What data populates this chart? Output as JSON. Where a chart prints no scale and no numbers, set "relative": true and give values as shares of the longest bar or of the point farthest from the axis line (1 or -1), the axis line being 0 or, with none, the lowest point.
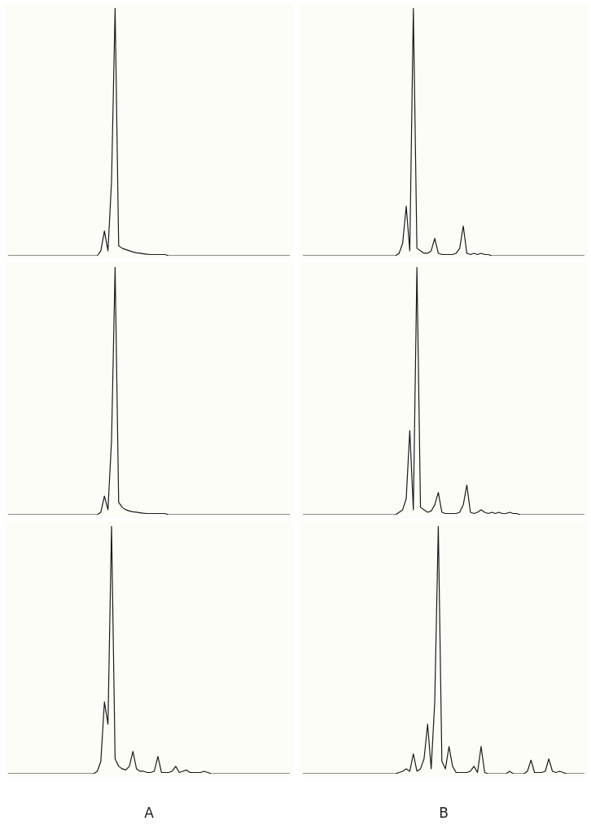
{
  "chart_data": [
    {
      "type": "line",
      "relative": true,
      "tick_labels": false,
      "categories": [
        null,
        null,
        null,
        null,
        null,
        null,
        null,
        null,
        null,
        null,
        null,
        null,
        null,
        null,
        null,
        null,
        null,
        null,
        null,
        null,
        null,
        null,
        null,
        null,
        null,
        null,
        null,
        null,
        null,
        null,
        null,
        null,
        null,
        null,
        null,
        null,
        null,
        null,
        null,
        null,
        null,
        null,
        null,
        null,
        null,
        null,
        null,
        null,
        null,
        null,
        null,
        null,
        null,
        null,
        null,
        null,
        null,
        null,
        null,
        null,
        null,
        null,
        null,
        null,
        null,
        null,
        null,
        null,
        null,
        null,
        null,
        null,
        null,
        null,
        null,
        null,
        null,
        null,
        null,
        null
      ],
      "series": [
        {
          "color": "#1a1a1a",
          "values": [
            0,
            0,
            0,
            0,
            0,
            0,
            0,
            0,
            0,
            0,
            0,
            0,
            0,
            0,
            0,
            0,
            0,
            0,
            0,
            0,
            0,
            0,
            0,
            0,
            0,
            0,
            0.02,
            0.1,
            0.02,
            0.3,
            1,
            0.04,
            0.03,
            0.025,
            0.02,
            0.015,
            0.012,
            0.01,
            0.008,
            0.006,
            0.005,
            0.005,
            0.005,
            0.005,
            0.005,
            0,
            0,
            0,
            0,
            0,
            0,
            0,
            0,
            0,
            0,
            0,
            0,
            0,
            0,
            0,
            0,
            0,
            0,
            0,
            0,
            0,
            0,
            0,
            0,
            0,
            0,
            0,
            0,
            0,
            0,
            0,
            0,
            0,
            0,
            0
          ]
        }
      ]
    },
    {
      "type": "line",
      "relative": true,
      "tick_labels": false,
      "categories": [
        null,
        null,
        null,
        null,
        null,
        null,
        null,
        null,
        null,
        null,
        null,
        null,
        null,
        null,
        null,
        null,
        null,
        null,
        null,
        null,
        null,
        null,
        null,
        null,
        null,
        null,
        null,
        null,
        null,
        null,
        null,
        null,
        null,
        null,
        null,
        null,
        null,
        null,
        null,
        null,
        null,
        null,
        null,
        null,
        null,
        null,
        null,
        null,
        null,
        null,
        null,
        null,
        null,
        null,
        null,
        null,
        null,
        null,
        null,
        null,
        null,
        null,
        null,
        null,
        null,
        null,
        null,
        null,
        null,
        null,
        null,
        null,
        null,
        null,
        null,
        null,
        null,
        null,
        null,
        null
      ],
      "series": [
        {
          "color": "#1a1a1a",
          "values": [
            0,
            0,
            0,
            0,
            0,
            0,
            0,
            0,
            0,
            0,
            0,
            0,
            0,
            0,
            0,
            0,
            0,
            0,
            0,
            0,
            0,
            0,
            0,
            0,
            0,
            0,
            0,
            0.01,
            0.05,
            0.2,
            0.02,
            1,
            0.03,
            0.02,
            0.01,
            0.01,
            0.02,
            0.07,
            0.01,
            0.005,
            0.005,
            0.005,
            0.005,
            0.01,
            0.03,
            0.12,
            0.01,
            0.005,
            0.01,
            0.005,
            0.01,
            0.005,
            0.005,
            0,
            0,
            0,
            0,
            0,
            0,
            0,
            0,
            0,
            0,
            0,
            0,
            0,
            0,
            0,
            0,
            0,
            0,
            0,
            0,
            0,
            0,
            0,
            0,
            0,
            0,
            0
          ]
        }
      ]
    },
    {
      "type": "line",
      "relative": true,
      "tick_labels": false,
      "categories": [
        null,
        null,
        null,
        null,
        null,
        null,
        null,
        null,
        null,
        null,
        null,
        null,
        null,
        null,
        null,
        null,
        null,
        null,
        null,
        null,
        null,
        null,
        null,
        null,
        null,
        null,
        null,
        null,
        null,
        null,
        null,
        null,
        null,
        null,
        null,
        null,
        null,
        null,
        null,
        null,
        null,
        null,
        null,
        null,
        null,
        null,
        null,
        null,
        null,
        null,
        null,
        null,
        null,
        null,
        null,
        null,
        null,
        null,
        null,
        null,
        null,
        null,
        null,
        null,
        null,
        null,
        null,
        null,
        null,
        null,
        null,
        null,
        null,
        null,
        null,
        null,
        null,
        null,
        null,
        null
      ],
      "series": [
        {
          "color": "#1a1a1a",
          "values": [
            0,
            0,
            0,
            0,
            0,
            0,
            0,
            0,
            0,
            0,
            0,
            0,
            0,
            0,
            0,
            0,
            0,
            0,
            0,
            0,
            0,
            0,
            0,
            0,
            0,
            0,
            0.01,
            0.075,
            0.02,
            0.3,
            1,
            0.05,
            0.03,
            0.02,
            0.015,
            0.012,
            0.01,
            0.008,
            0.006,
            0.005,
            0.005,
            0.005,
            0.005,
            0.005,
            0.005,
            0,
            0,
            0,
            0,
            0,
            0,
            0,
            0,
            0,
            0,
            0,
            0,
            0,
            0,
            0,
            0,
            0,
            0,
            0,
            0,
            0,
            0,
            0,
            0,
            0,
            0,
            0,
            0,
            0,
            0,
            0,
            0,
            0,
            0,
            0
          ]
        }
      ]
    },
    {
      "type": "line",
      "relative": true,
      "tick_labels": false,
      "categories": [
        null,
        null,
        null,
        null,
        null,
        null,
        null,
        null,
        null,
        null,
        null,
        null,
        null,
        null,
        null,
        null,
        null,
        null,
        null,
        null,
        null,
        null,
        null,
        null,
        null,
        null,
        null,
        null,
        null,
        null,
        null,
        null,
        null,
        null,
        null,
        null,
        null,
        null,
        null,
        null,
        null,
        null,
        null,
        null,
        null,
        null,
        null,
        null,
        null,
        null,
        null,
        null,
        null,
        null,
        null,
        null,
        null,
        null,
        null,
        null,
        null,
        null,
        null,
        null,
        null,
        null,
        null,
        null,
        null,
        null,
        null,
        null,
        null,
        null,
        null,
        null,
        null,
        null,
        null,
        null
      ],
      "series": [
        {
          "color": "#1a1a1a",
          "values": [
            0,
            0,
            0,
            0,
            0,
            0,
            0,
            0,
            0,
            0,
            0,
            0,
            0,
            0,
            0,
            0,
            0,
            0,
            0,
            0,
            0,
            0,
            0,
            0,
            0,
            0,
            0,
            0.01,
            0.02,
            0.065,
            0.34,
            0.02,
            1,
            0.03,
            0.02,
            0.01,
            0.015,
            0.04,
            0.09,
            0.01,
            0.005,
            0.005,
            0.005,
            0.005,
            0.01,
            0.04,
            0.12,
            0.01,
            0.005,
            0.01,
            0.02,
            0.01,
            0.005,
            0.01,
            0.005,
            0.01,
            0.005,
            0.005,
            0.01,
            0.005,
            0.005,
            0,
            0,
            0,
            0,
            0,
            0,
            0,
            0,
            0,
            0,
            0,
            0,
            0,
            0,
            0,
            0,
            0,
            0,
            0
          ]
        }
      ]
    },
    {
      "type": "line",
      "relative": true,
      "tick_labels": false,
      "xlabel": "A",
      "categories": [
        null,
        null,
        null,
        null,
        null,
        null,
        null,
        null,
        null,
        null,
        null,
        null,
        null,
        null,
        null,
        null,
        null,
        null,
        null,
        null,
        null,
        null,
        null,
        null,
        null,
        null,
        null,
        null,
        null,
        null,
        null,
        null,
        null,
        null,
        null,
        null,
        null,
        null,
        null,
        null,
        null,
        null,
        null,
        null,
        null,
        null,
        null,
        null,
        null,
        null,
        null,
        null,
        null,
        null,
        null,
        null,
        null,
        null,
        null,
        null,
        null,
        null,
        null,
        null,
        null,
        null,
        null,
        null,
        null,
        null,
        null,
        null,
        null,
        null,
        null,
        null,
        null,
        null,
        null,
        null
      ],
      "series": [
        {
          "color": "#1a1a1a",
          "values": [
            0,
            0,
            0,
            0,
            0,
            0,
            0,
            0,
            0,
            0,
            0,
            0,
            0,
            0,
            0,
            0,
            0,
            0,
            0,
            0,
            0,
            0,
            0,
            0,
            0,
            0.01,
            0.05,
            0.29,
            0.2,
            1,
            0.06,
            0.03,
            0.02,
            0.015,
            0.03,
            0.09,
            0.02,
            0.01,
            0.01,
            0.005,
            0.005,
            0.01,
            0.07,
            0.005,
            0.005,
            0.005,
            0.01,
            0.03,
            0.005,
            0.01,
            0.015,
            0.005,
            0.005,
            0.005,
            0.005,
            0.01,
            0.005,
            0,
            0,
            0,
            0,
            0,
            0,
            0,
            0,
            0,
            0,
            0,
            0,
            0,
            0,
            0,
            0,
            0,
            0,
            0,
            0,
            0,
            0,
            0
          ]
        }
      ]
    },
    {
      "type": "line",
      "relative": true,
      "tick_labels": false,
      "xlabel": "B",
      "categories": [
        null,
        null,
        null,
        null,
        null,
        null,
        null,
        null,
        null,
        null,
        null,
        null,
        null,
        null,
        null,
        null,
        null,
        null,
        null,
        null,
        null,
        null,
        null,
        null,
        null,
        null,
        null,
        null,
        null,
        null,
        null,
        null,
        null,
        null,
        null,
        null,
        null,
        null,
        null,
        null,
        null,
        null,
        null,
        null,
        null,
        null,
        null,
        null,
        null,
        null,
        null,
        null,
        null,
        null,
        null,
        null,
        null,
        null,
        null,
        null,
        null,
        null,
        null,
        null,
        null,
        null,
        null,
        null,
        null,
        null,
        null,
        null,
        null,
        null,
        null,
        null,
        null,
        null,
        null,
        null
      ],
      "series": [
        {
          "color": "#1a1a1a",
          "values": [
            0,
            0,
            0,
            0,
            0,
            0,
            0,
            0,
            0,
            0,
            0,
            0,
            0,
            0,
            0,
            0,
            0,
            0,
            0,
            0,
            0,
            0,
            0,
            0,
            0,
            0,
            0,
            0.005,
            0.01,
            0.02,
            0.01,
            0.08,
            0.01,
            0.02,
            0.06,
            0.2,
            0.02,
            0.29,
            1,
            0.05,
            0.02,
            0.11,
            0.03,
            0.005,
            0.005,
            0.005,
            0.005,
            0.01,
            0.03,
            0.005,
            0.11,
            0.005,
            0,
            0,
            0,
            0,
            0,
            0,
            0.01,
            0,
            0,
            0,
            0,
            0.01,
            0.055,
            0.005,
            0.005,
            0.005,
            0.01,
            0.06,
            0.01,
            0.005,
            0.01,
            0.005,
            0,
            0,
            0,
            0,
            0,
            0
          ]
        }
      ]
    }
  ]
}
